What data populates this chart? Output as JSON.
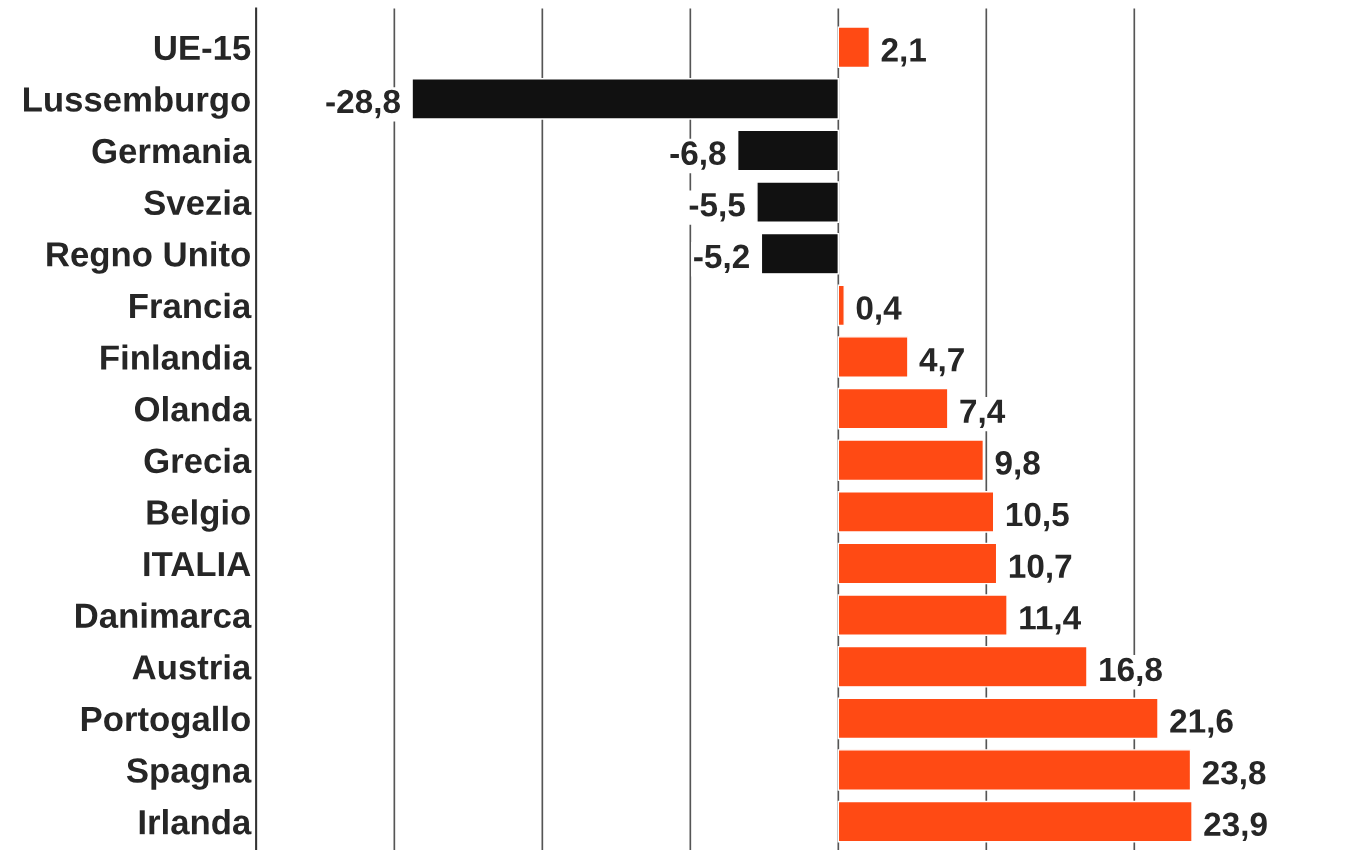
{
  "chart_data": {
    "type": "bar",
    "orientation": "horizontal",
    "categories": [
      "UE-15",
      "Lussemburgo",
      "Germania",
      "Svezia",
      "Regno Unito",
      "Francia",
      "Finlandia",
      "Olanda",
      "Grecia",
      "Belgio",
      "ITALIA",
      "Danimarca",
      "Austria",
      "Portogallo",
      "Spagna",
      "Irlanda"
    ],
    "values": [
      2.1,
      -28.8,
      -6.8,
      -5.5,
      -5.2,
      0.4,
      4.7,
      7.4,
      9.8,
      10.5,
      10.7,
      11.4,
      16.8,
      21.6,
      23.8,
      23.9
    ],
    "value_labels": [
      "2,1",
      "-28,8",
      "-6,8",
      "-5,5",
      "-5,2",
      "0,4",
      "4,7",
      "7,4",
      "9,8",
      "10,5",
      "10,7",
      "11,4",
      "16,8",
      "21,6",
      "23,8",
      "23,9"
    ],
    "colors": [
      "#ff4a14",
      "#111111",
      "#111111",
      "#111111",
      "#111111",
      "#ff4a14",
      "#ff4a14",
      "#ff4a14",
      "#ff4a14",
      "#ff4a14",
      "#ff4a14",
      "#ff4a14",
      "#ff4a14",
      "#ff4a14",
      "#ff4a14",
      "#ff4a14"
    ],
    "xticks": [
      {
        "value": -30,
        "label": null
      },
      {
        "value": -20,
        "label": null
      },
      {
        "value": -10,
        "label": null
      },
      {
        "value": 0,
        "label": null
      },
      {
        "value": 10,
        "label": null
      },
      {
        "value": 20,
        "label": null
      }
    ],
    "grid": "x",
    "tick_labels": "y"
  }
}
